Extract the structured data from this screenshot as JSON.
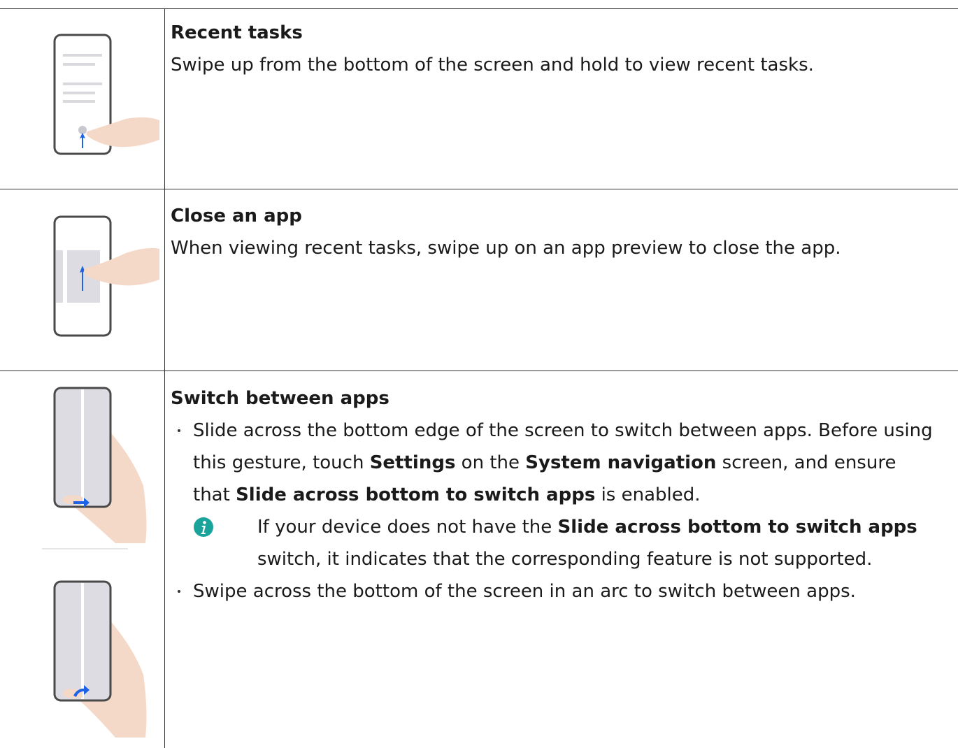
{
  "rows": [
    {
      "title": "Recent tasks",
      "text": "Swipe up from the bottom of the screen and hold to view recent tasks."
    },
    {
      "title": "Close an app",
      "text": "When viewing recent tasks, swipe up on an app preview to close the app."
    },
    {
      "title": "Switch between apps",
      "bullets": [
        {
          "runs": [
            {
              "text": "Slide across the bottom edge of the screen to switch between apps. Before using this gesture, touch ",
              "bold": false
            },
            {
              "text": "Settings",
              "bold": true
            },
            {
              "text": " on the ",
              "bold": false
            },
            {
              "text": "System navigation",
              "bold": true
            },
            {
              "text": " screen, and ensure that ",
              "bold": false
            },
            {
              "text": "Slide across bottom to switch apps",
              "bold": true
            },
            {
              "text": " is enabled.",
              "bold": false
            }
          ],
          "note": {
            "runs": [
              {
                "text": "If your device does not have the ",
                "bold": false
              },
              {
                "text": "Slide across bottom to switch apps",
                "bold": true
              },
              {
                "text": " switch, it indicates that the corresponding feature is not supported.",
                "bold": false
              }
            ]
          }
        },
        {
          "runs": [
            {
              "text": "Swipe across the bottom of the screen in an arc to switch between apps.",
              "bold": false
            }
          ]
        }
      ]
    }
  ]
}
